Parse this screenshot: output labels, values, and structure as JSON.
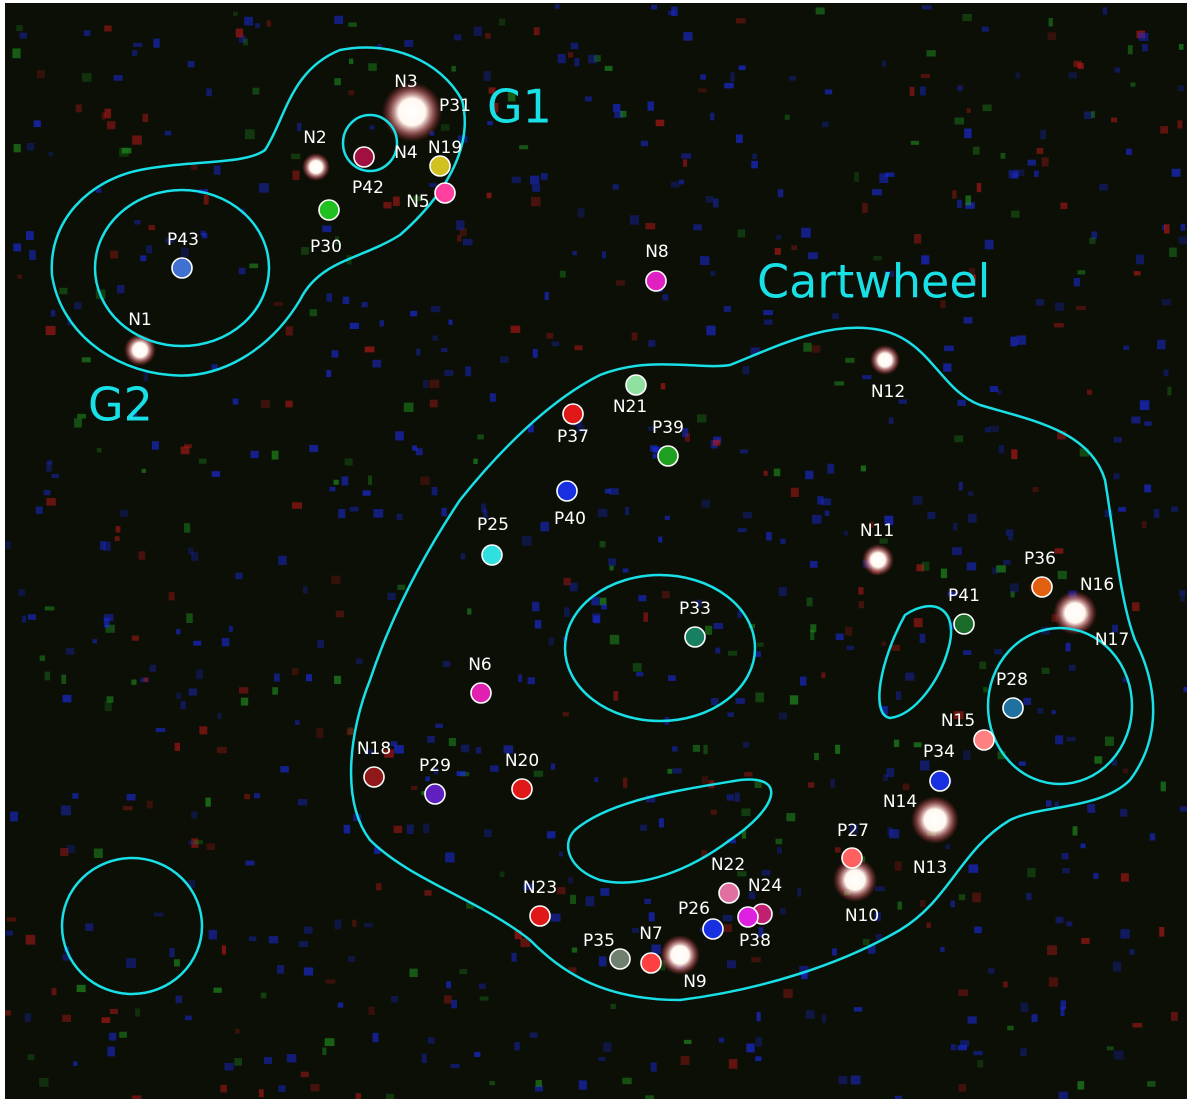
{
  "regions": [
    {
      "label": "G1"
    },
    {
      "label": "G2"
    },
    {
      "label": "Cartwheel"
    }
  ],
  "sources": [
    "N3",
    "P31",
    "N2",
    "P42",
    "N4",
    "N19",
    "N5",
    "P30",
    "P43",
    "N1",
    "N8",
    "N12",
    "N21",
    "P37",
    "P39",
    "P40",
    "P25",
    "N11",
    "P36",
    "N16",
    "N17",
    "P41",
    "P33",
    "N6",
    "P28",
    "N15",
    "P34",
    "N18",
    "P29",
    "N20",
    "N14",
    "N13",
    "P27",
    "N10",
    "N22",
    "N24",
    "P38",
    "N23",
    "P26",
    "N7",
    "P35",
    "N9"
  ]
}
